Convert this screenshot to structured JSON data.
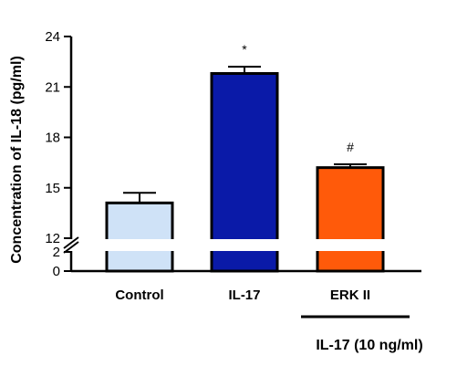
{
  "chart_data": {
    "type": "bar",
    "ylabel": "Concentration of IL-18 (pg/ml)",
    "categories": [
      "Control",
      "IL-17",
      "ERK II"
    ],
    "values": [
      14.1,
      21.8,
      16.2
    ],
    "errors": [
      0.6,
      0.4,
      0.2
    ],
    "colors": [
      "#cfe2f7",
      "#0a1aa8",
      "#ff5a0a"
    ],
    "annotations": [
      "",
      "*",
      "#"
    ],
    "axis_break": {
      "lower": [
        0,
        2
      ],
      "upper": [
        12,
        24
      ]
    },
    "yticks_lower": [
      "0",
      "2"
    ],
    "yticks_upper": [
      "12",
      "15",
      "18",
      "21",
      "24"
    ],
    "group_label": "IL-17 (10 ng/ml)"
  }
}
